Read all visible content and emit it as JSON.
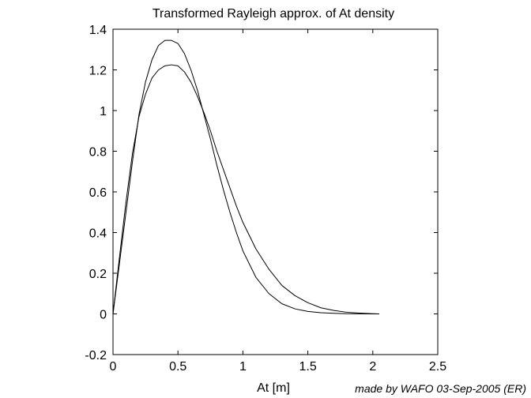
{
  "chart_data": {
    "type": "line",
    "title": "Transformed Rayleigh approx. of At density",
    "xlabel": "At [m]",
    "ylabel": "",
    "xlim": [
      0,
      2.5
    ],
    "ylim": [
      -0.2,
      1.4
    ],
    "xticks": [
      0,
      0.5,
      1,
      1.5,
      2,
      2.5
    ],
    "xtick_labels": [
      "0",
      "0.5",
      "1",
      "1.5",
      "2",
      "2.5"
    ],
    "yticks": [
      -0.2,
      0,
      0.2,
      0.4,
      0.6,
      0.8,
      1,
      1.2,
      1.4
    ],
    "ytick_labels": [
      "-0.2",
      "0",
      "0.2",
      "0.4",
      "0.6",
      "0.8",
      "1",
      "1.2",
      "1.4"
    ],
    "grid": false,
    "line_color": "#000000",
    "series": [
      {
        "x": [
          0,
          0.05,
          0.1,
          0.15,
          0.2,
          0.25,
          0.3,
          0.35,
          0.4,
          0.45,
          0.5,
          0.55,
          0.6,
          0.65,
          0.7,
          0.75,
          0.8,
          0.85,
          0.9,
          0.95,
          1.0,
          1.1,
          1.2,
          1.3,
          1.4,
          1.5,
          1.6,
          1.7,
          1.8,
          1.9,
          2.0,
          2.05
        ],
        "y": [
          0,
          0.25,
          0.5,
          0.75,
          0.98,
          1.14,
          1.25,
          1.32,
          1.345,
          1.345,
          1.33,
          1.28,
          1.2,
          1.1,
          0.98,
          0.86,
          0.73,
          0.61,
          0.5,
          0.4,
          0.31,
          0.18,
          0.1,
          0.05,
          0.025,
          0.012,
          0.006,
          0.003,
          0.001,
          0.0005,
          0.0,
          0.0
        ]
      },
      {
        "x": [
          0,
          0.05,
          0.1,
          0.15,
          0.2,
          0.25,
          0.3,
          0.35,
          0.4,
          0.45,
          0.5,
          0.55,
          0.6,
          0.65,
          0.7,
          0.75,
          0.8,
          0.85,
          0.9,
          0.95,
          1.0,
          1.1,
          1.2,
          1.3,
          1.4,
          1.5,
          1.6,
          1.7,
          1.8,
          1.9,
          2.0,
          2.05
        ],
        "y": [
          0,
          0.28,
          0.55,
          0.79,
          0.97,
          1.08,
          1.16,
          1.2,
          1.22,
          1.225,
          1.22,
          1.19,
          1.14,
          1.07,
          0.99,
          0.9,
          0.8,
          0.71,
          0.62,
          0.53,
          0.45,
          0.32,
          0.22,
          0.14,
          0.09,
          0.055,
          0.03,
          0.017,
          0.008,
          0.004,
          0.001,
          0.0
        ]
      }
    ]
  },
  "footer": "made by WAFO 03-Sep-2005 (ER)"
}
